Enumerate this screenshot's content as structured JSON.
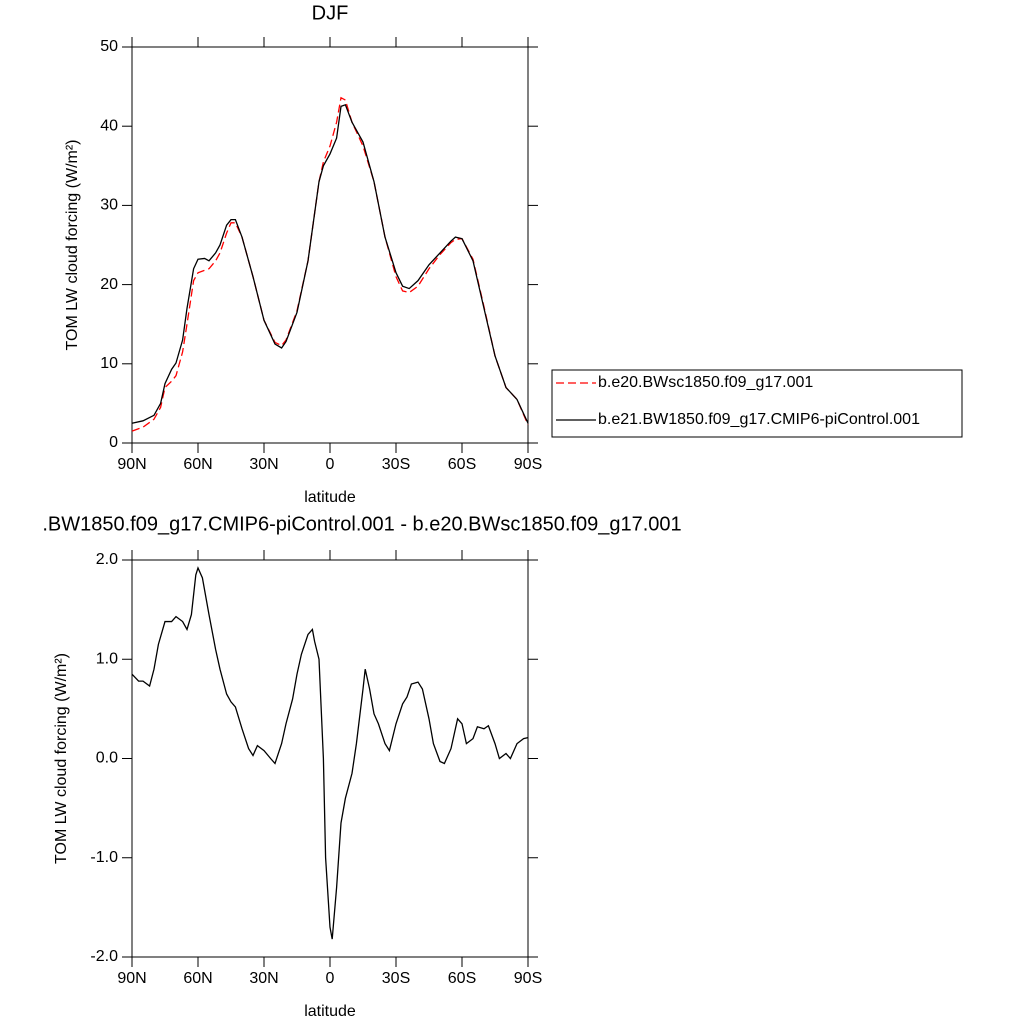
{
  "chart_data": [
    {
      "type": "line",
      "title": "DJF",
      "xlabel": "latitude",
      "ylabel": "TOM LW cloud forcing (W/m²)",
      "x": [
        90,
        85,
        80,
        77,
        75,
        72,
        70,
        67,
        65,
        62,
        60,
        57,
        55,
        52,
        50,
        47,
        45,
        43,
        40,
        35,
        30,
        25,
        22,
        20,
        15,
        10,
        5,
        3,
        0,
        -3,
        -5,
        -7,
        -10,
        -15,
        -20,
        -25,
        -30,
        -33,
        -36,
        -40,
        -45,
        -50,
        -55,
        -57,
        -60,
        -65,
        -70,
        -75,
        -80,
        -85,
        -90
      ],
      "series": [
        {
          "name": "b.e20.BWsc1850.f09_g17.001",
          "color": "#ff0000",
          "dashed": true,
          "values": [
            1.5,
            2,
            3,
            4.5,
            7,
            7.8,
            8.5,
            11.5,
            15,
            20.5,
            21.5,
            21.8,
            22,
            23,
            24,
            26.5,
            27.8,
            27.8,
            26,
            21,
            15.5,
            12.7,
            12.3,
            13,
            16.7,
            23,
            33,
            35.5,
            37.5,
            40.5,
            43.6,
            43.3,
            40.5,
            37.5,
            33,
            26,
            21,
            19.2,
            19,
            19.8,
            22,
            23.8,
            25.3,
            25.7,
            25.8,
            23.2,
            17.2,
            11,
            7,
            5.5,
            2.3
          ]
        },
        {
          "name": "b.e21.BW1850.f09_g17.CMIP6-piControl.001",
          "color": "#000000",
          "dashed": false,
          "values": [
            2.5,
            2.8,
            3.5,
            5,
            7.5,
            9.3,
            10.1,
            13,
            17,
            22,
            23.2,
            23.3,
            23,
            24,
            25,
            27.5,
            28.2,
            28.2,
            26,
            21,
            15.5,
            12.5,
            12,
            12.8,
            16.5,
            23,
            33,
            35,
            36.5,
            38.5,
            42.5,
            42.7,
            40.5,
            38,
            33,
            26,
            21.5,
            19.8,
            19.5,
            20.5,
            22.5,
            24,
            25.5,
            26,
            25.8,
            23,
            17,
            11,
            7,
            5.5,
            2.5
          ]
        }
      ],
      "xlim": [
        90,
        -90
      ],
      "xticks": [
        {
          "value": 90,
          "label": "90N"
        },
        {
          "value": 60,
          "label": "60N"
        },
        {
          "value": 30,
          "label": "30N"
        },
        0,
        {
          "value": -30,
          "label": "30S"
        },
        {
          "value": -60,
          "label": "60S"
        },
        {
          "value": -90,
          "label": "90S"
        }
      ],
      "ylim": [
        0,
        50
      ],
      "yticks": [
        0,
        10,
        20,
        30,
        40,
        50
      ],
      "legend": "right"
    },
    {
      "type": "line",
      "title": ".BW1850.f09_g17.CMIP6-piControl.001 - b.e20.BWsc1850.f09_g17.001",
      "xlabel": "latitude",
      "ylabel": "TOM LW cloud forcing (W/m²)",
      "x": [
        90,
        87,
        85,
        82,
        80,
        78,
        75,
        72,
        70,
        67,
        65,
        63,
        61,
        60,
        58,
        55,
        52,
        50,
        47,
        45,
        43,
        40,
        37,
        35,
        33,
        30,
        27,
        25,
        22,
        20,
        17,
        15,
        13,
        10,
        8,
        7,
        5,
        3,
        2,
        0,
        -1,
        -3,
        -5,
        -7,
        -10,
        -12,
        -15,
        -16,
        -18,
        -20,
        -22,
        -25,
        -27,
        -30,
        -33,
        -35,
        -37,
        -40,
        -42,
        -45,
        -47,
        -50,
        -52,
        -55,
        -57,
        -58,
        -60,
        -62,
        -65,
        -67,
        -70,
        -72,
        -75,
        -77,
        -80,
        -82,
        -85,
        -88,
        -90
      ],
      "series": [
        {
          "color": "#000000",
          "dashed": false,
          "values": [
            0.85,
            0.78,
            0.78,
            0.73,
            0.9,
            1.15,
            1.38,
            1.38,
            1.43,
            1.38,
            1.3,
            1.45,
            1.85,
            1.92,
            1.82,
            1.45,
            1.1,
            0.9,
            0.65,
            0.57,
            0.52,
            0.3,
            0.1,
            0.03,
            0.13,
            0.08,
            0.0,
            -0.05,
            0.15,
            0.35,
            0.6,
            0.85,
            1.05,
            1.25,
            1.3,
            1.18,
            1.0,
            0.0,
            -1.0,
            -1.7,
            -1.82,
            -1.3,
            -0.65,
            -0.4,
            -0.15,
            0.15,
            0.7,
            0.9,
            0.7,
            0.45,
            0.35,
            0.15,
            0.08,
            0.35,
            0.55,
            0.62,
            0.75,
            0.77,
            0.7,
            0.4,
            0.15,
            -0.03,
            -0.05,
            0.1,
            0.3,
            0.4,
            0.35,
            0.15,
            0.2,
            0.32,
            0.3,
            0.33,
            0.15,
            0.0,
            0.05,
            0.0,
            0.15,
            0.2,
            0.21
          ]
        }
      ],
      "xlim": [
        90,
        -90
      ],
      "xticks": [
        {
          "value": 90,
          "label": "90N"
        },
        {
          "value": 60,
          "label": "60N"
        },
        {
          "value": 30,
          "label": "30N"
        },
        0,
        {
          "value": -30,
          "label": "30S"
        },
        {
          "value": -60,
          "label": "60S"
        },
        {
          "value": -90,
          "label": "90S"
        }
      ],
      "ylim": [
        -2,
        2
      ],
      "yticks": [
        {
          "value": -2,
          "label": "-2.0"
        },
        {
          "value": -1,
          "label": "-1.0"
        },
        {
          "value": 0,
          "label": "0.0"
        },
        {
          "value": 1,
          "label": "1.0"
        },
        {
          "value": 2,
          "label": "2.0"
        }
      ]
    }
  ]
}
